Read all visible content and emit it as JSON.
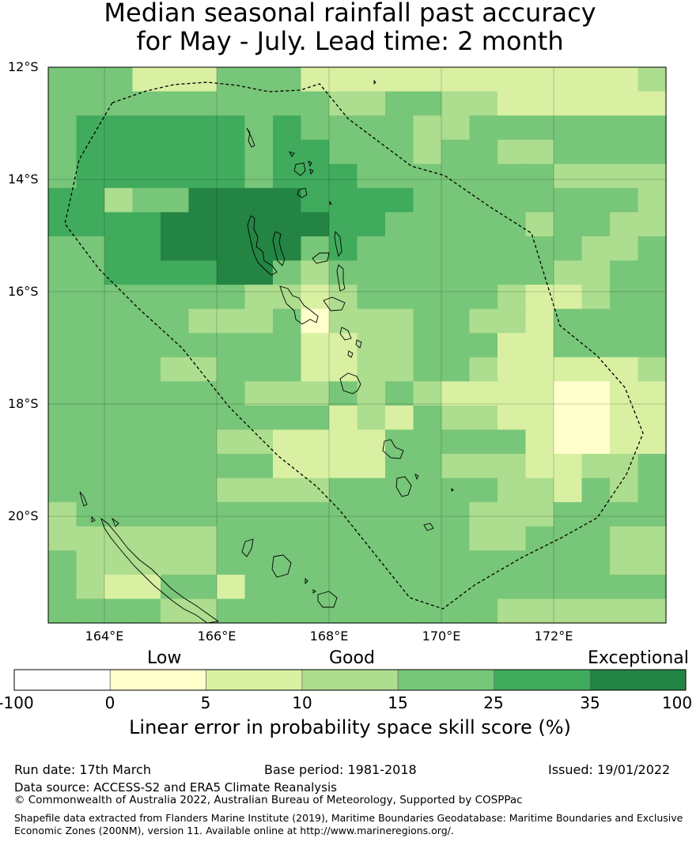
{
  "title": {
    "line1": "Median seasonal rainfall past accuracy",
    "line2": "for May - July. Lead time: 2 month"
  },
  "map": {
    "lat_labels": [
      "12°S",
      "14°S",
      "16°S",
      "18°S",
      "20°S"
    ],
    "lon_labels": [
      "164°E",
      "166°E",
      "168°E",
      "170°E",
      "172°E"
    ],
    "lon_range": [
      163,
      174
    ],
    "lat_range": [
      -21.8,
      -11.9
    ],
    "grid": [
      "3331113331111111111112",
      "3333333333223322111111",
      "3444444343333223333333",
      "3444444344333233223333",
      "3444444344433333332222",
      "4423355554444333333332",
      "4444555555443333323322",
      "3344555553433333333223",
      "3344445532333333332233",
      "3333333221233333211233",
      "3333322230222332213333",
      "3333333331122333113333",
      "3333223331122332111112",
      "3333333222323211110011",
      "3333333333121322110011",
      "3333332211113333310011",
      "3333333311113322211223",
      "3333332222333333221323",
      "2333333333333332223333",
      "2222223333333332233322",
      "3222223333333333333322",
      "3211331333333333333333",
      "3333223333333333222222"
    ],
    "palette": [
      "#ffffcc",
      "#d9f0a3",
      "#addd8e",
      "#78c679",
      "#41ab5d",
      "#238443"
    ],
    "boundary_line": "dashed"
  },
  "legend": {
    "categories": [
      "Low",
      "Good",
      "Exceptional"
    ],
    "ticks": [
      "-100",
      "0",
      "5",
      "10",
      "15",
      "25",
      "35",
      "100"
    ],
    "colors": [
      "#ffffff",
      "#ffffcc",
      "#d9f0a3",
      "#addd8e",
      "#78c679",
      "#41ab5d",
      "#238443"
    ],
    "label": "Linear error in probability space skill score (%)"
  },
  "footer": {
    "run_date": "Run date: 17th March",
    "base_period": "Base period: 1981-2018",
    "issued": "Issued: 19/01/2022",
    "data_source": "Data source: ACCESS-S2 and ERA5 Climate Reanalysis",
    "copyright": "© Commonwealth of Australia 2022, Australian Bureau of Meteorology, Supported by COSPPac",
    "shapefile": "Shapefile data extracted from Flanders Marine Institute (2019), Maritime Boundaries Geodatabase: Maritime Boundaries and Exclusive Economic Zones (200NM), version 11. Available online at http://www.marineregions.org/."
  }
}
